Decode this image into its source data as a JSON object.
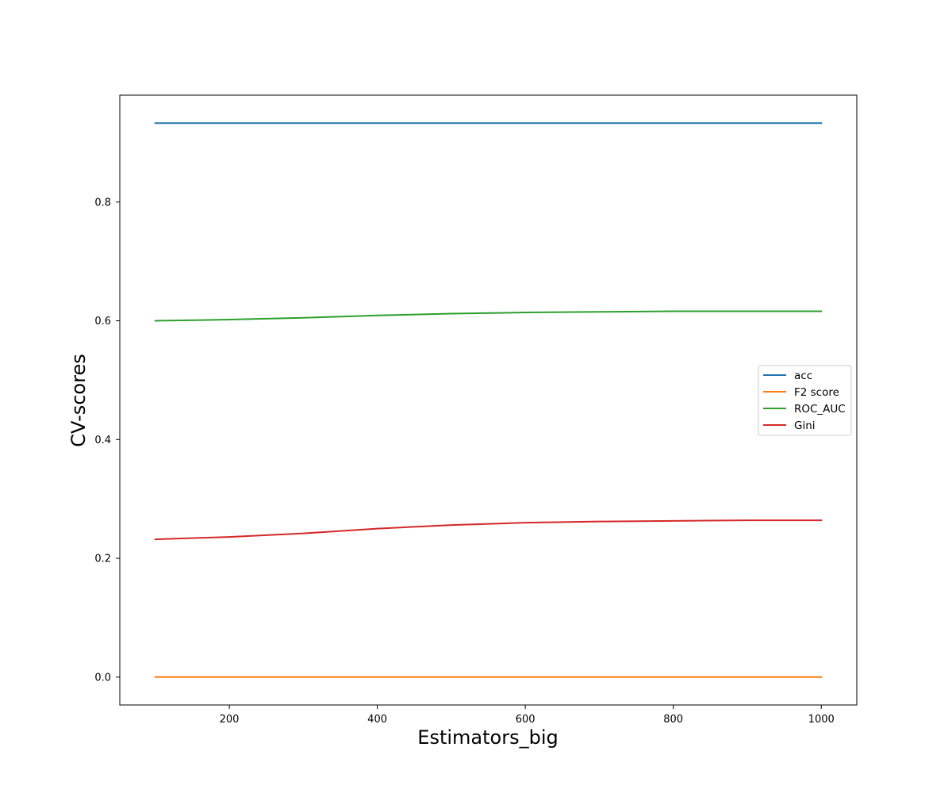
{
  "chart_data": {
    "type": "line",
    "title": "",
    "xlabel": "Estimators_big",
    "ylabel": "CV-scores",
    "x": [
      100,
      200,
      300,
      400,
      500,
      600,
      700,
      800,
      900,
      1000
    ],
    "xlim": [
      52,
      1048
    ],
    "ylim": [
      -0.047,
      0.98
    ],
    "xticks": [
      200,
      400,
      600,
      800,
      1000
    ],
    "xtick_labels": [
      "200",
      "400",
      "600",
      "800",
      "1000"
    ],
    "yticks": [
      0.0,
      0.2,
      0.4,
      0.6,
      0.8
    ],
    "ytick_labels": [
      "0.0",
      "0.2",
      "0.4",
      "0.6",
      "0.8"
    ],
    "grid": false,
    "legend_position": "center-right",
    "series": [
      {
        "name": "acc",
        "color": "#1f77b4",
        "values": [
          0.933,
          0.933,
          0.933,
          0.933,
          0.933,
          0.933,
          0.933,
          0.933,
          0.933,
          0.933
        ]
      },
      {
        "name": "F2 score",
        "color": "#ff7f0e",
        "values": [
          0.0,
          0.0,
          0.0,
          0.0,
          0.0,
          0.0,
          0.0,
          0.0,
          0.0,
          0.0
        ]
      },
      {
        "name": "ROC_AUC",
        "color": "#2ca02c",
        "values": [
          0.6,
          0.602,
          0.605,
          0.609,
          0.612,
          0.614,
          0.615,
          0.616,
          0.616,
          0.616
        ]
      },
      {
        "name": "Gini",
        "color": "#d62728",
        "values": [
          0.232,
          0.236,
          0.242,
          0.25,
          0.256,
          0.26,
          0.262,
          0.263,
          0.264,
          0.264
        ]
      }
    ]
  }
}
